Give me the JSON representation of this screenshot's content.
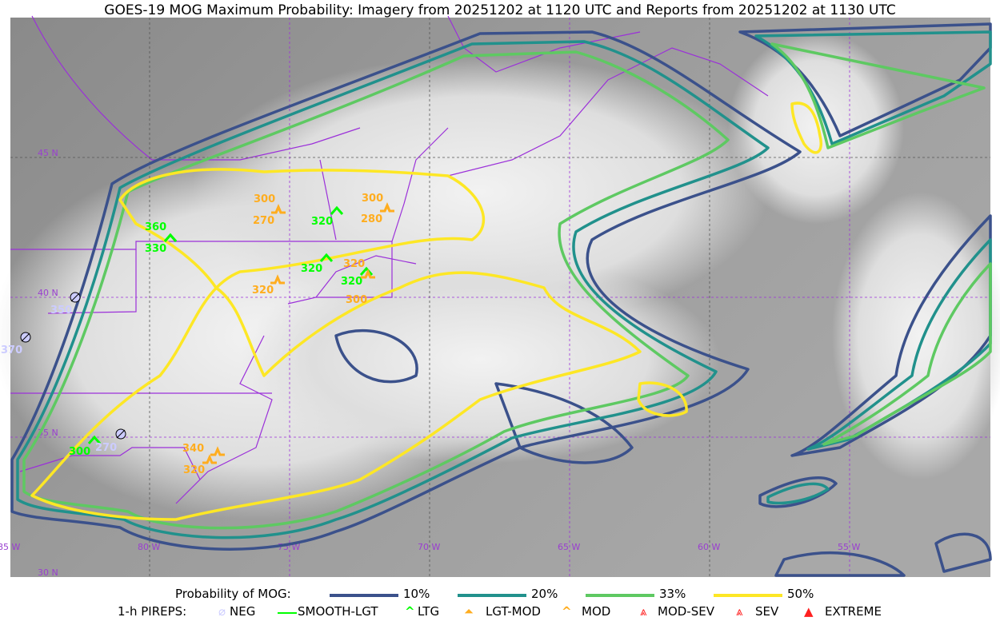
{
  "title": "GOES-19 MOG Maximum Probability: Imagery from 20251202 at 1120 UTC and Reports from 20251202 at 1130 UTC",
  "map": {
    "lat_labels": [
      "45 N",
      "40 N",
      "35 N",
      "30 N"
    ],
    "lon_labels": [
      "85 W",
      "80 W",
      "75 W",
      "70 W",
      "65 W",
      "60 W",
      "55 W"
    ],
    "colors": {
      "p10": "#3b518b",
      "p20": "#21918c",
      "p33": "#5ec962",
      "p50": "#fde725",
      "borders": "#9b30d9",
      "grid": "#9b30d9"
    }
  },
  "reports": [
    {
      "label": "360",
      "type": "LTG",
      "color": "#00ff00"
    },
    {
      "label": "330",
      "type": "LTG",
      "color": "#00ff00"
    },
    {
      "label": "300",
      "type": "MOD",
      "color": "#ffad1f"
    },
    {
      "label": "270",
      "type": "MOD",
      "color": "#ffad1f"
    },
    {
      "label": "320",
      "type": "LTG",
      "color": "#00ff00"
    },
    {
      "label": "300",
      "type": "MOD",
      "color": "#ffad1f"
    },
    {
      "label": "280",
      "type": "MOD",
      "color": "#ffad1f"
    },
    {
      "label": "320",
      "type": "LTG",
      "color": "#00ff00"
    },
    {
      "label": "320",
      "type": "MOD",
      "color": "#ffad1f"
    },
    {
      "label": "320",
      "type": "LTG",
      "color": "#00ff00"
    },
    {
      "label": "300",
      "type": "MOD",
      "color": "#ffad1f"
    },
    {
      "label": "320",
      "type": "MOD",
      "color": "#ffad1f"
    },
    {
      "label": "350",
      "type": "NEG",
      "color": "#ccccff"
    },
    {
      "label": "370",
      "type": "NEG",
      "color": "#ccccff"
    },
    {
      "label": "300",
      "type": "LTG",
      "color": "#00ff00"
    },
    {
      "label": "270",
      "type": "NEG",
      "color": "#ccccff"
    },
    {
      "label": "340",
      "type": "MOD",
      "color": "#ffad1f"
    },
    {
      "label": "320",
      "type": "MOD",
      "color": "#ffad1f"
    }
  ],
  "legend": {
    "prob_title": "Probability of MOG:",
    "prob_items": [
      {
        "label": "10%",
        "color": "#3b518b"
      },
      {
        "label": "20%",
        "color": "#21918c"
      },
      {
        "label": "33%",
        "color": "#5ec962"
      },
      {
        "label": "50%",
        "color": "#fde725"
      }
    ],
    "pirep_title": "1-h PIREPS:",
    "pirep_items": [
      {
        "label": "NEG",
        "color": "#ccccff"
      },
      {
        "label": "SMOOTH-LGT",
        "color": "#00ff00"
      },
      {
        "label": "LTG",
        "color": "#00ff00"
      },
      {
        "label": "LGT-MOD",
        "color": "#ffad1f"
      },
      {
        "label": "MOD",
        "color": "#ffad1f"
      },
      {
        "label": "MOD-SEV",
        "color": "#ff2020"
      },
      {
        "label": "SEV",
        "color": "#ff2020"
      },
      {
        "label": "EXTREME",
        "color": "#ff2020"
      }
    ]
  }
}
